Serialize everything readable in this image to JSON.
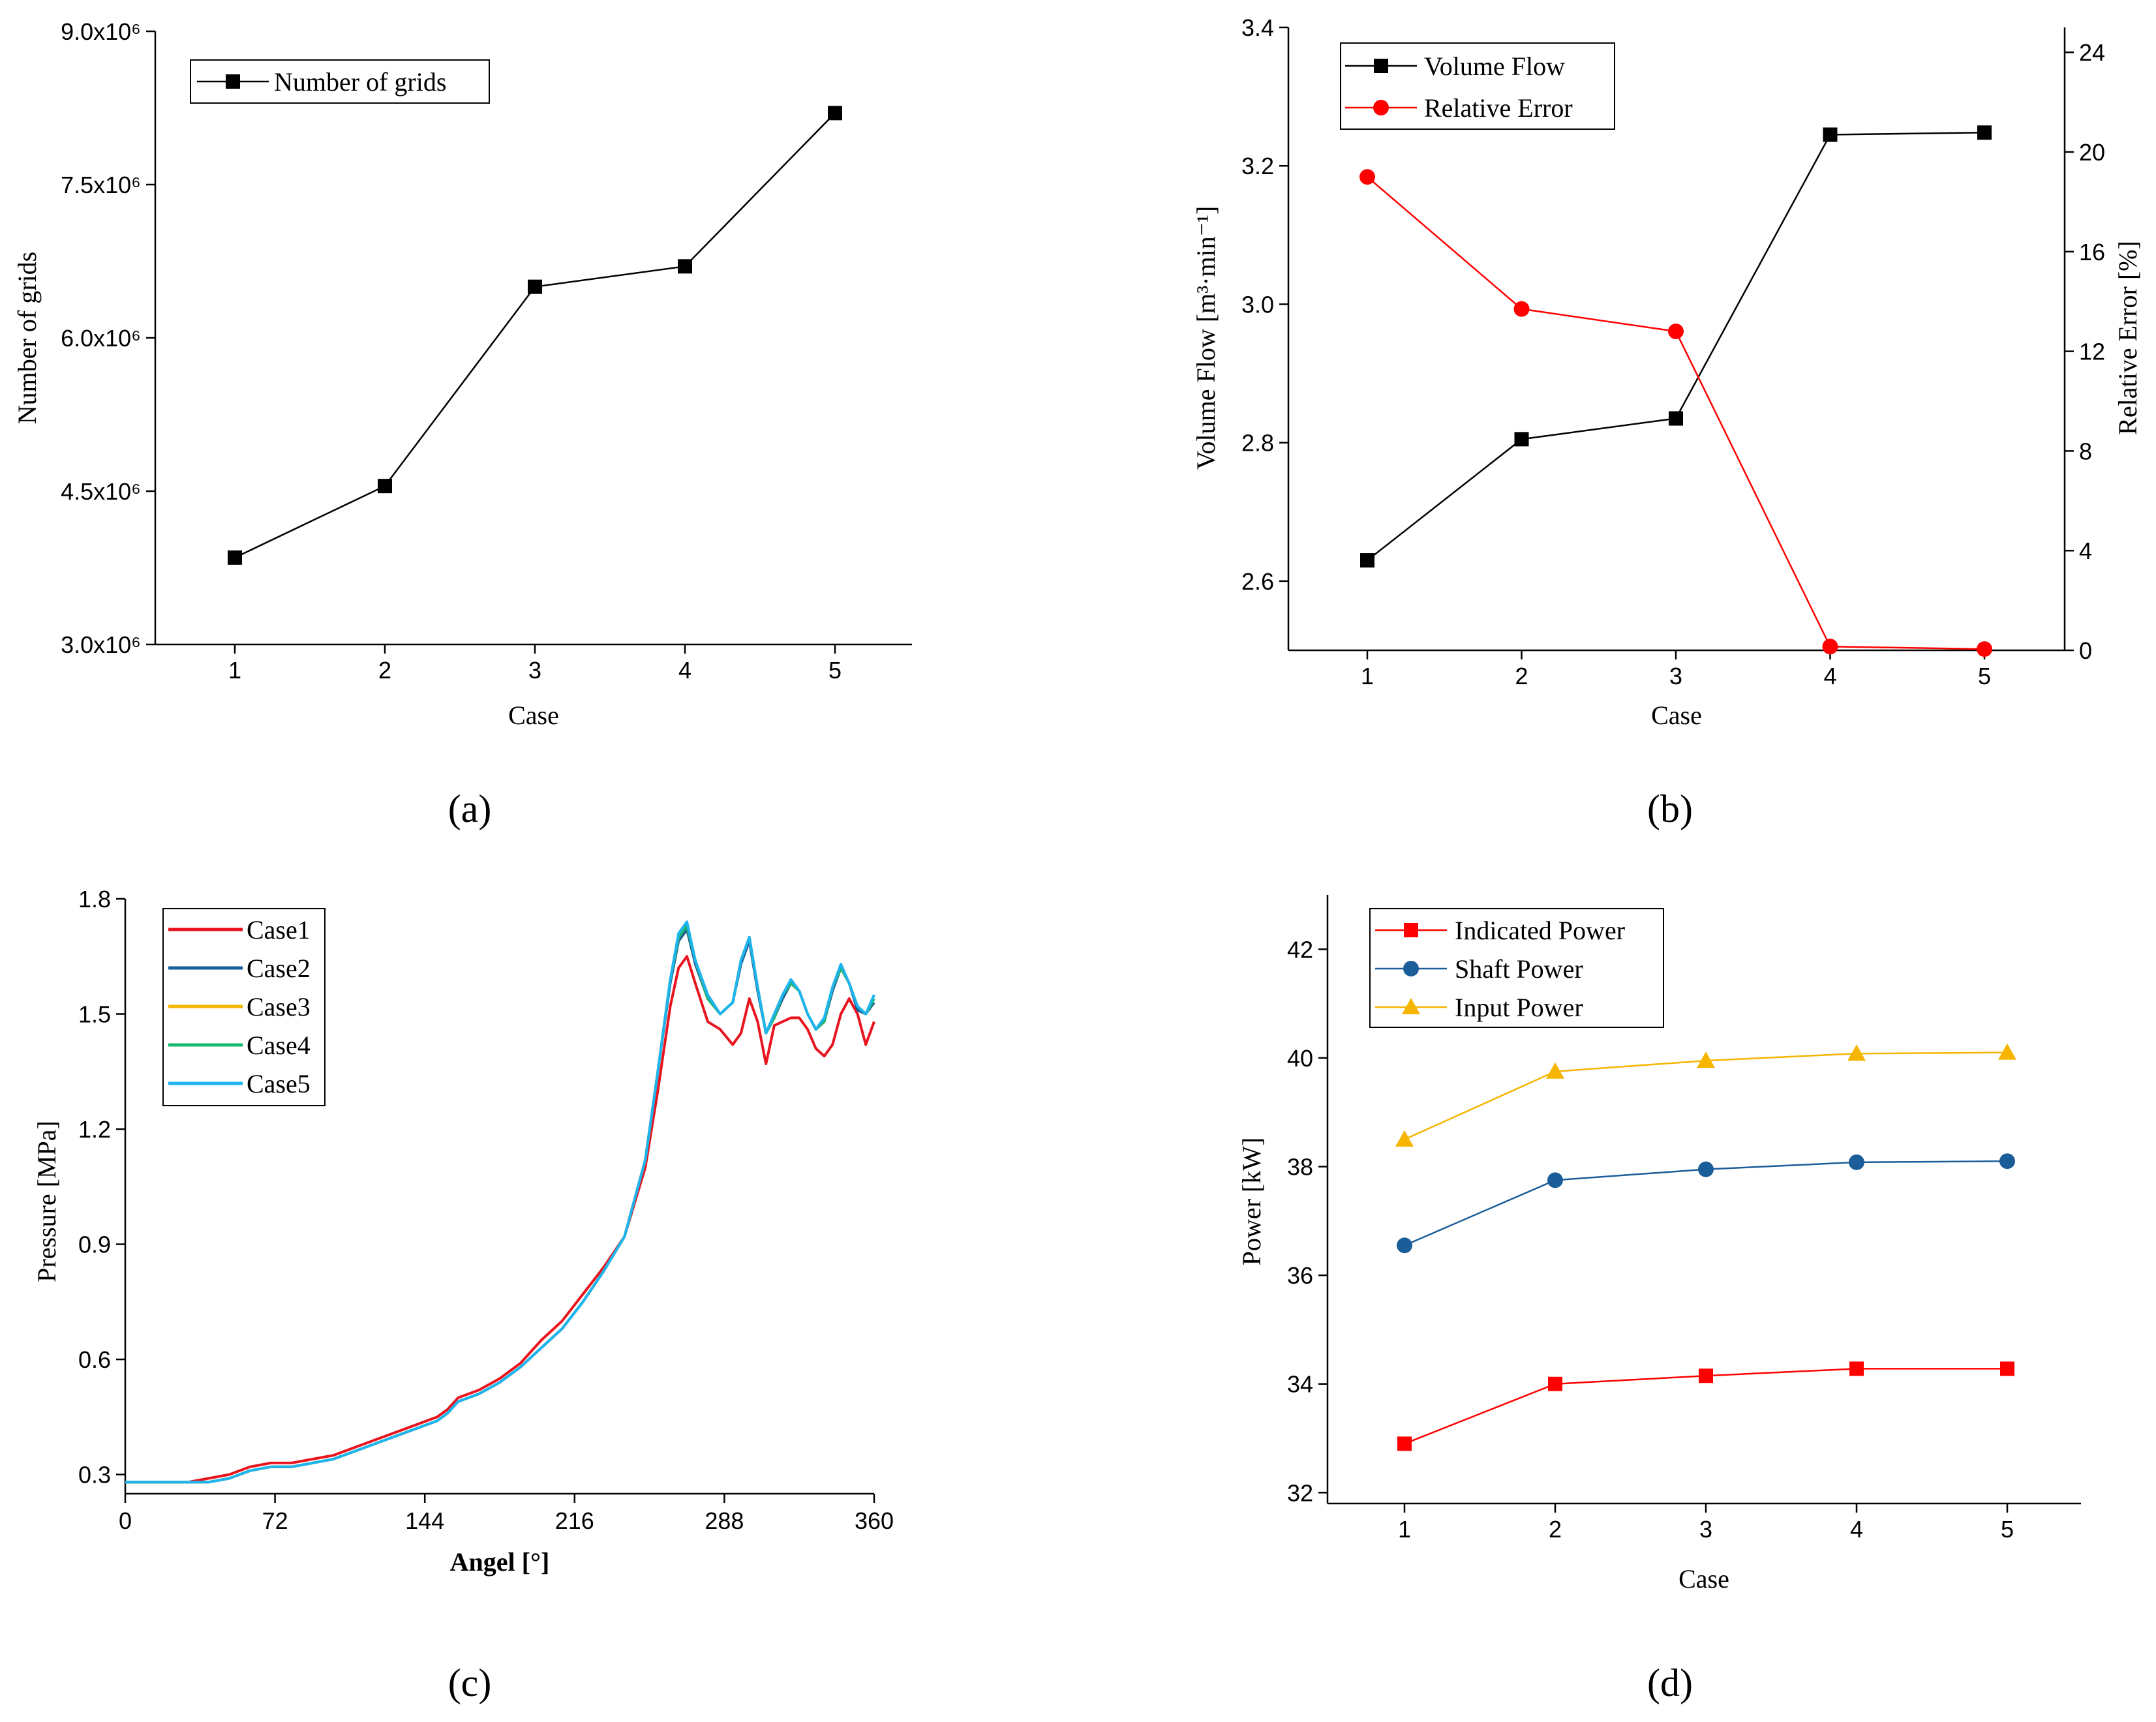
{
  "figure": {
    "panel_labels": [
      "(a)",
      "(b)",
      "(c)",
      "(d)"
    ]
  },
  "chart_data": [
    {
      "id": "a",
      "type": "line",
      "title": "",
      "xlabel": "Case",
      "ylabel": "Number of grids",
      "categories": [
        1,
        2,
        3,
        4,
        5
      ],
      "ylim": [
        3000000,
        9000000
      ],
      "yticks": [
        3000000,
        4500000,
        6000000,
        7500000,
        9000000
      ],
      "ytick_labels": [
        "3.0x10⁶",
        "4.5x10⁶",
        "6.0x10⁶",
        "7.5x10⁶",
        "9.0x10⁶"
      ],
      "legend_position": "top-left",
      "series": [
        {
          "name": "Number of grids",
          "color": "#000000",
          "marker": "square",
          "values": [
            3850000,
            4550000,
            6500000,
            6700000,
            8200000
          ]
        }
      ]
    },
    {
      "id": "b",
      "type": "line",
      "title": "",
      "xlabel": "Case",
      "ylabel": "Volume Flow [m³·min⁻¹]",
      "y2label": "Relative Error [%]",
      "categories": [
        1,
        2,
        3,
        4,
        5
      ],
      "ylim": [
        2.5,
        3.4
      ],
      "yticks": [
        2.6,
        2.8,
        3.0,
        3.2,
        3.4
      ],
      "ytick_labels": [
        "2.6",
        "2.8",
        "3.0",
        "3.2",
        "3.4"
      ],
      "y2lim": [
        0,
        25
      ],
      "y2ticks": [
        0,
        4,
        8,
        12,
        16,
        20,
        24
      ],
      "y2tick_labels": [
        "0",
        "4",
        "8",
        "12",
        "16",
        "20",
        "24"
      ],
      "legend_position": "top-left",
      "series": [
        {
          "name": "Volume Flow",
          "color": "#000000",
          "marker": "square",
          "axis": "left",
          "values": [
            2.63,
            2.805,
            2.835,
            3.245,
            3.248
          ]
        },
        {
          "name": "Relative Error",
          "color": "#ff0000",
          "marker": "circle",
          "axis": "right",
          "values": [
            19.0,
            13.7,
            12.8,
            0.15,
            0.05
          ]
        }
      ]
    },
    {
      "id": "c",
      "type": "line",
      "title": "",
      "xlabel": "Angel [°]",
      "ylabel": "Pressure [MPa]",
      "xlim": [
        0,
        360
      ],
      "xticks": [
        0,
        72,
        144,
        216,
        288,
        360
      ],
      "xtick_labels": [
        "0",
        "72",
        "144",
        "216",
        "288",
        "360"
      ],
      "ylim": [
        0.25,
        1.8
      ],
      "yticks": [
        0.3,
        0.6,
        0.9,
        1.2,
        1.5,
        1.8
      ],
      "ytick_labels": [
        "0.3",
        "0.6",
        "0.9",
        "1.2",
        "1.5",
        "1.8"
      ],
      "legend_position": "top-left",
      "series": [
        {
          "name": "Case1",
          "color": "#e8141e",
          "x": [
            0,
            30,
            40,
            50,
            60,
            70,
            80,
            90,
            100,
            110,
            120,
            130,
            140,
            150,
            155,
            160,
            165,
            170,
            180,
            190,
            200,
            210,
            220,
            230,
            240,
            250,
            256,
            262,
            266,
            270,
            274,
            280,
            286,
            292,
            296,
            300,
            304,
            308,
            312,
            316,
            320,
            324,
            328,
            332,
            336,
            340,
            344,
            348,
            352,
            356,
            360
          ],
          "y": [
            0.28,
            0.28,
            0.29,
            0.3,
            0.32,
            0.33,
            0.33,
            0.34,
            0.35,
            0.37,
            0.39,
            0.41,
            0.43,
            0.45,
            0.47,
            0.5,
            0.51,
            0.52,
            0.55,
            0.59,
            0.65,
            0.7,
            0.77,
            0.84,
            0.92,
            1.1,
            1.3,
            1.52,
            1.62,
            1.65,
            1.58,
            1.48,
            1.46,
            1.42,
            1.45,
            1.54,
            1.48,
            1.37,
            1.47,
            1.48,
            1.49,
            1.49,
            1.46,
            1.41,
            1.39,
            1.42,
            1.5,
            1.54,
            1.5,
            1.42,
            1.48
          ]
        },
        {
          "name": "Case2",
          "color": "#1a5d99",
          "x": [
            0,
            30,
            40,
            50,
            60,
            70,
            80,
            90,
            100,
            110,
            120,
            130,
            140,
            150,
            155,
            160,
            165,
            170,
            180,
            190,
            200,
            210,
            220,
            230,
            240,
            250,
            256,
            262,
            266,
            270,
            274,
            280,
            286,
            292,
            296,
            300,
            304,
            308,
            312,
            316,
            320,
            324,
            328,
            332,
            336,
            340,
            344,
            348,
            352,
            356,
            360
          ],
          "y": [
            0.28,
            0.28,
            0.28,
            0.29,
            0.31,
            0.32,
            0.32,
            0.33,
            0.34,
            0.36,
            0.38,
            0.4,
            0.42,
            0.44,
            0.46,
            0.49,
            0.5,
            0.51,
            0.54,
            0.58,
            0.63,
            0.68,
            0.75,
            0.83,
            0.92,
            1.12,
            1.35,
            1.58,
            1.69,
            1.72,
            1.63,
            1.54,
            1.5,
            1.53,
            1.63,
            1.69,
            1.56,
            1.45,
            1.49,
            1.54,
            1.58,
            1.56,
            1.5,
            1.46,
            1.48,
            1.56,
            1.62,
            1.58,
            1.51,
            1.5,
            1.53
          ]
        },
        {
          "name": "Case3",
          "color": "#f5b500",
          "x": [
            0,
            30,
            40,
            50,
            60,
            70,
            80,
            90,
            100,
            110,
            120,
            130,
            140,
            150,
            155,
            160,
            165,
            170,
            180,
            190,
            200,
            210,
            220,
            230,
            240,
            250,
            256,
            262,
            266,
            270,
            274,
            280,
            286,
            292,
            296,
            300,
            304,
            308,
            312,
            316,
            320,
            324,
            328,
            332,
            336,
            340,
            344,
            348,
            352,
            356,
            360
          ],
          "y": [
            0.28,
            0.28,
            0.28,
            0.29,
            0.31,
            0.32,
            0.32,
            0.33,
            0.34,
            0.36,
            0.38,
            0.4,
            0.42,
            0.44,
            0.46,
            0.49,
            0.5,
            0.51,
            0.54,
            0.58,
            0.63,
            0.68,
            0.75,
            0.83,
            0.92,
            1.12,
            1.35,
            1.59,
            1.7,
            1.73,
            1.64,
            1.54,
            1.5,
            1.53,
            1.64,
            1.7,
            1.57,
            1.45,
            1.49,
            1.55,
            1.58,
            1.56,
            1.5,
            1.46,
            1.48,
            1.57,
            1.62,
            1.58,
            1.52,
            1.5,
            1.54
          ]
        },
        {
          "name": "Case4",
          "color": "#18b86e",
          "x": [
            0,
            30,
            40,
            50,
            60,
            70,
            80,
            90,
            100,
            110,
            120,
            130,
            140,
            150,
            155,
            160,
            165,
            170,
            180,
            190,
            200,
            210,
            220,
            230,
            240,
            250,
            256,
            262,
            266,
            270,
            274,
            280,
            286,
            292,
            296,
            300,
            304,
            308,
            312,
            316,
            320,
            324,
            328,
            332,
            336,
            340,
            344,
            348,
            352,
            356,
            360
          ],
          "y": [
            0.28,
            0.28,
            0.28,
            0.29,
            0.31,
            0.32,
            0.32,
            0.33,
            0.34,
            0.36,
            0.38,
            0.4,
            0.42,
            0.44,
            0.46,
            0.49,
            0.5,
            0.51,
            0.54,
            0.58,
            0.63,
            0.68,
            0.75,
            0.83,
            0.92,
            1.12,
            1.35,
            1.59,
            1.7,
            1.73,
            1.64,
            1.54,
            1.5,
            1.53,
            1.64,
            1.7,
            1.57,
            1.45,
            1.49,
            1.55,
            1.58,
            1.56,
            1.5,
            1.46,
            1.48,
            1.57,
            1.62,
            1.58,
            1.52,
            1.5,
            1.54
          ]
        },
        {
          "name": "Case5",
          "color": "#1eb4f0",
          "x": [
            0,
            30,
            40,
            50,
            60,
            70,
            80,
            90,
            100,
            110,
            120,
            130,
            140,
            150,
            155,
            160,
            165,
            170,
            180,
            190,
            200,
            210,
            220,
            230,
            240,
            250,
            256,
            262,
            266,
            270,
            274,
            280,
            286,
            292,
            296,
            300,
            304,
            308,
            312,
            316,
            320,
            324,
            328,
            332,
            336,
            340,
            344,
            348,
            352,
            356,
            360
          ],
          "y": [
            0.28,
            0.28,
            0.28,
            0.29,
            0.31,
            0.32,
            0.32,
            0.33,
            0.34,
            0.36,
            0.38,
            0.4,
            0.42,
            0.44,
            0.46,
            0.49,
            0.5,
            0.51,
            0.54,
            0.58,
            0.63,
            0.68,
            0.75,
            0.83,
            0.92,
            1.12,
            1.35,
            1.59,
            1.71,
            1.74,
            1.64,
            1.55,
            1.5,
            1.53,
            1.64,
            1.7,
            1.57,
            1.45,
            1.5,
            1.55,
            1.59,
            1.56,
            1.5,
            1.46,
            1.49,
            1.57,
            1.63,
            1.58,
            1.52,
            1.5,
            1.55
          ]
        }
      ]
    },
    {
      "id": "d",
      "type": "line",
      "title": "",
      "xlabel": "Case",
      "ylabel": "Power [kW]",
      "categories": [
        1,
        2,
        3,
        4,
        5
      ],
      "ylim": [
        31.8,
        43.0
      ],
      "yticks": [
        32,
        34,
        36,
        38,
        40,
        42
      ],
      "ytick_labels": [
        "32",
        "34",
        "36",
        "38",
        "40",
        "42"
      ],
      "legend_position": "top-left",
      "series": [
        {
          "name": "Indicated Power",
          "color": "#ff0000",
          "marker": "square",
          "values": [
            32.9,
            34.0,
            34.15,
            34.28,
            34.28
          ]
        },
        {
          "name": "Shaft Power",
          "color": "#1a5d99",
          "marker": "circle",
          "values": [
            36.55,
            37.75,
            37.95,
            38.08,
            38.1
          ]
        },
        {
          "name": "Input Power",
          "color": "#f5b500",
          "marker": "triangle",
          "values": [
            38.5,
            39.75,
            39.95,
            40.08,
            40.1
          ]
        }
      ]
    }
  ]
}
